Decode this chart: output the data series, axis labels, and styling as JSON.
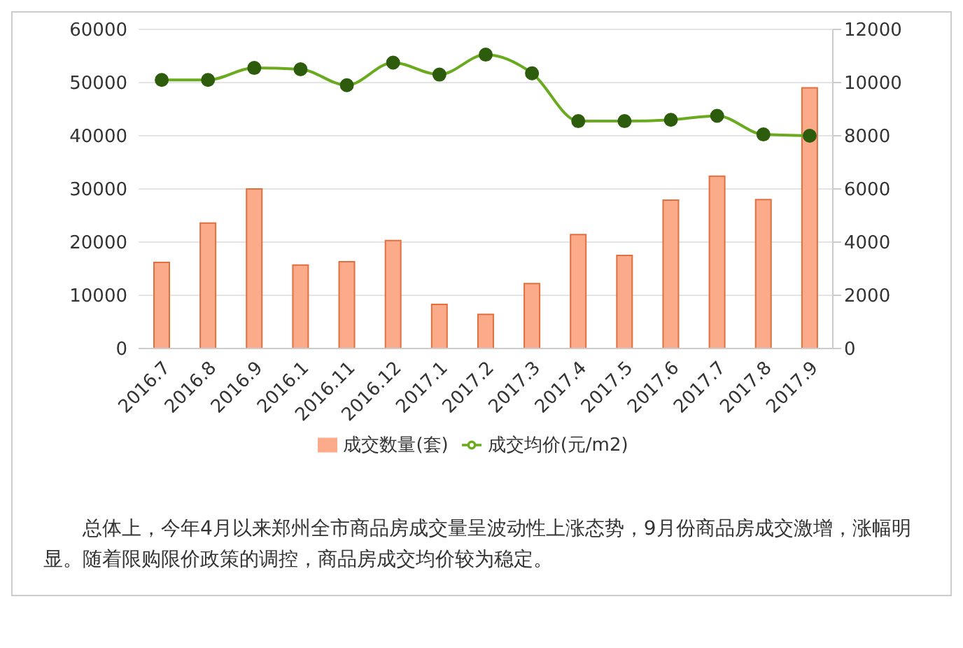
{
  "chart_data": {
    "type": "bar",
    "categories": [
      "2016.7",
      "2016.8",
      "2016.9",
      "2016.1",
      "2016.11",
      "2016.12",
      "2017.1",
      "2017.2",
      "2017.3",
      "2017.4",
      "2017.5",
      "2017.6",
      "2017.7",
      "2017.8",
      "2017.9"
    ],
    "series": [
      {
        "name": "成交数量(套)",
        "color": "#fcab8a",
        "values": [
          16200,
          23600,
          30000,
          15700,
          16300,
          20300,
          8300,
          6400,
          12200,
          21400,
          17500,
          27900,
          32400,
          28000,
          49000
        ]
      },
      {
        "name": "成交均价(元/m2)",
        "type": "line",
        "axis": "y2",
        "color": "#6aaa1e",
        "values": [
          10100,
          10100,
          10550,
          10500,
          9900,
          10750,
          10300,
          11050,
          10350,
          8550,
          8550,
          8600,
          8750,
          8050,
          8000
        ]
      }
    ],
    "ylim": [
      0,
      60000
    ],
    "yticks": [
      0,
      10000,
      20000,
      30000,
      40000,
      50000,
      60000
    ],
    "y2lim": [
      0,
      12000
    ],
    "y2ticks": [
      0,
      2000,
      4000,
      6000,
      8000,
      10000,
      12000
    ],
    "grid": "y",
    "legend": "bottom",
    "marker": "circle",
    "line_style": "solid",
    "annotations": [
      "总体上，今年4月以来郑州全市商品房成交量呈波动性上涨态势，9月份商品房成交激增，涨幅明显。随着限购限价政策的调控，商品房成交均价较为稳定。"
    ]
  }
}
